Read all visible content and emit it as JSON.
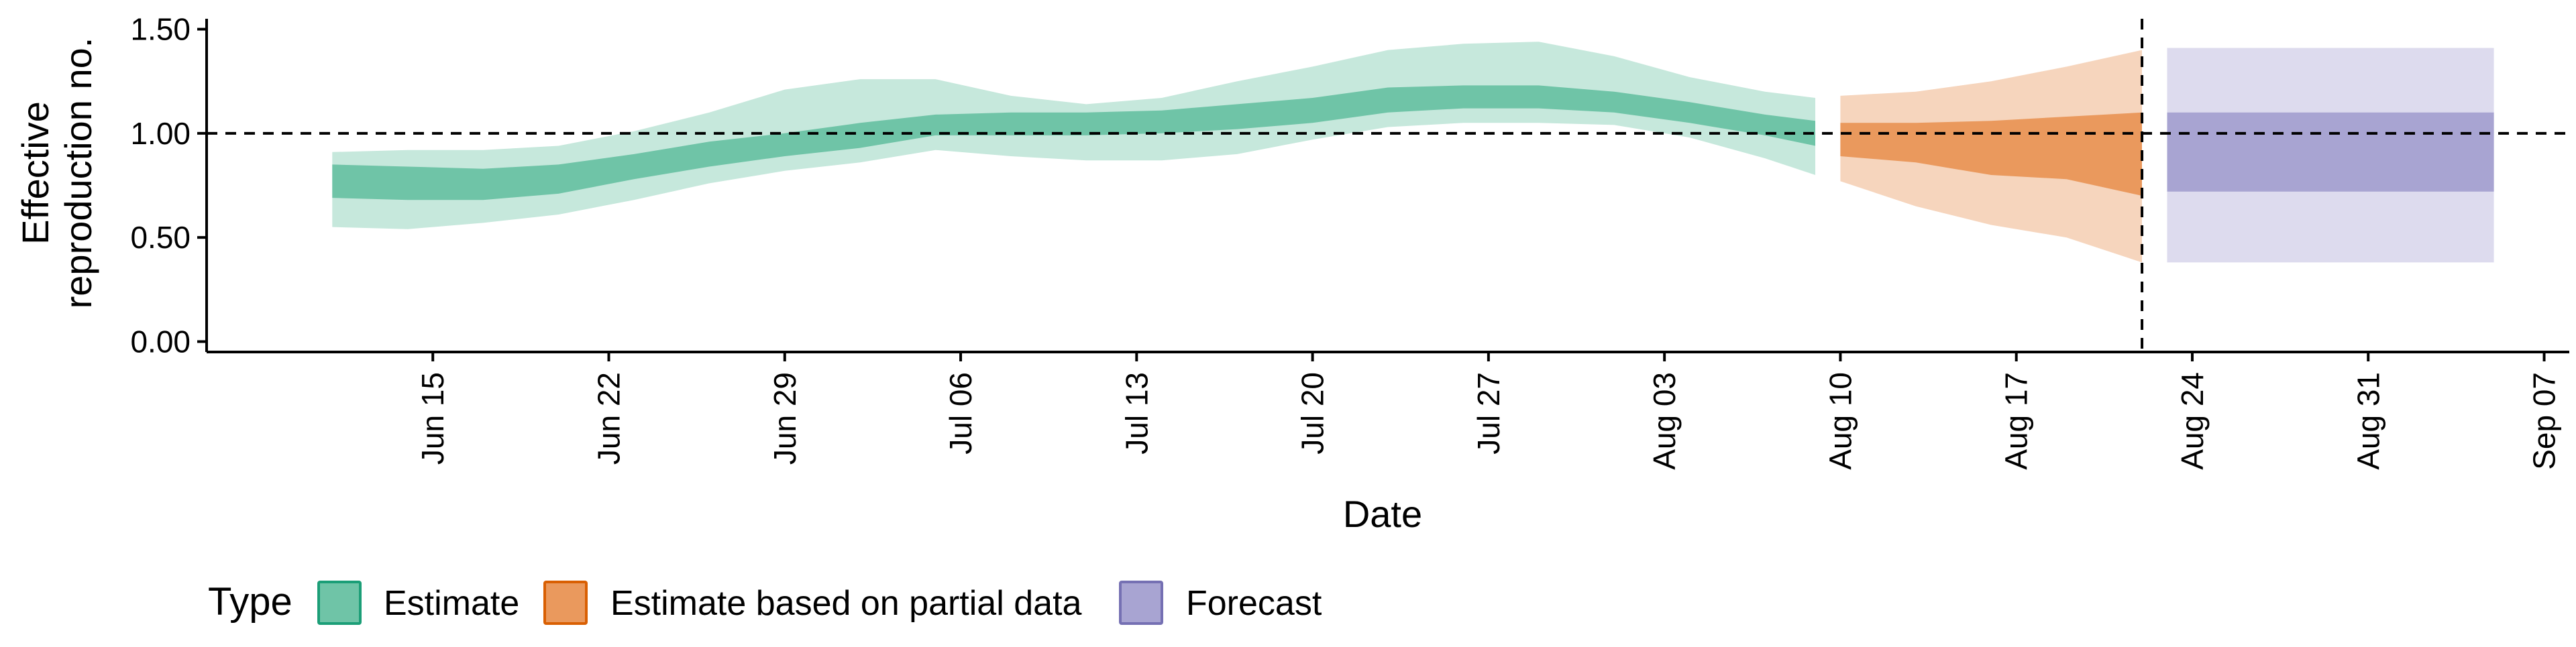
{
  "chart_data": {
    "type": "area",
    "title": "",
    "xlabel": "Date",
    "ylabel_lines": [
      "Effective",
      "reproduction no."
    ],
    "ylim": [
      -0.05,
      1.55
    ],
    "y_ticks": [
      0.0,
      0.5,
      1.0,
      1.5
    ],
    "y_tick_labels": [
      "0.00",
      "0.50",
      "1.00",
      "1.50"
    ],
    "x_range": [
      "2020-06-06",
      "2020-09-08"
    ],
    "x_ticks": [
      "2020-06-15",
      "2020-06-22",
      "2020-06-29",
      "2020-07-06",
      "2020-07-13",
      "2020-07-20",
      "2020-07-27",
      "2020-08-03",
      "2020-08-10",
      "2020-08-17",
      "2020-08-24",
      "2020-08-31",
      "2020-09-07"
    ],
    "x_tick_labels": [
      "Jun 15",
      "Jun 22",
      "Jun 29",
      "Jul 06",
      "Jul 13",
      "Jul 20",
      "Jul 27",
      "Aug 03",
      "Aug 10",
      "Aug 17",
      "Aug 24",
      "Aug 31",
      "Sep 07"
    ],
    "hline": 1.0,
    "vline": "2020-08-22",
    "grid": false,
    "legend": {
      "position": "bottom",
      "title": "Type",
      "items": [
        {
          "label": "Estimate",
          "fill": "#6fc4a7",
          "border": "#1b9e77"
        },
        {
          "label": "Estimate based on partial data",
          "fill": "#ea995d",
          "border": "#d95f02"
        },
        {
          "label": "Forecast",
          "fill": "#a8a4d2",
          "border": "#7570b3"
        }
      ]
    },
    "series": [
      {
        "name": "Estimate",
        "inner_color": "#6fc4a7",
        "outer_color": "#c6e8dc",
        "points": [
          {
            "x": "2020-06-11",
            "o_lo": 0.55,
            "i_lo": 0.69,
            "i_hi": 0.85,
            "o_hi": 0.91
          },
          {
            "x": "2020-06-14",
            "o_lo": 0.54,
            "i_lo": 0.68,
            "i_hi": 0.84,
            "o_hi": 0.92
          },
          {
            "x": "2020-06-17",
            "o_lo": 0.57,
            "i_lo": 0.68,
            "i_hi": 0.83,
            "o_hi": 0.92
          },
          {
            "x": "2020-06-20",
            "o_lo": 0.61,
            "i_lo": 0.71,
            "i_hi": 0.85,
            "o_hi": 0.94
          },
          {
            "x": "2020-06-23",
            "o_lo": 0.68,
            "i_lo": 0.78,
            "i_hi": 0.9,
            "o_hi": 1.01
          },
          {
            "x": "2020-06-26",
            "o_lo": 0.76,
            "i_lo": 0.84,
            "i_hi": 0.96,
            "o_hi": 1.1
          },
          {
            "x": "2020-06-29",
            "o_lo": 0.82,
            "i_lo": 0.89,
            "i_hi": 1.0,
            "o_hi": 1.21
          },
          {
            "x": "2020-07-02",
            "o_lo": 0.86,
            "i_lo": 0.93,
            "i_hi": 1.05,
            "o_hi": 1.26
          },
          {
            "x": "2020-07-05",
            "o_lo": 0.92,
            "i_lo": 0.99,
            "i_hi": 1.09,
            "o_hi": 1.26
          },
          {
            "x": "2020-07-08",
            "o_lo": 0.89,
            "i_lo": 0.99,
            "i_hi": 1.1,
            "o_hi": 1.18
          },
          {
            "x": "2020-07-11",
            "o_lo": 0.87,
            "i_lo": 0.99,
            "i_hi": 1.1,
            "o_hi": 1.14
          },
          {
            "x": "2020-07-14",
            "o_lo": 0.87,
            "i_lo": 1.0,
            "i_hi": 1.11,
            "o_hi": 1.17
          },
          {
            "x": "2020-07-17",
            "o_lo": 0.9,
            "i_lo": 1.02,
            "i_hi": 1.14,
            "o_hi": 1.25
          },
          {
            "x": "2020-07-20",
            "o_lo": 0.97,
            "i_lo": 1.05,
            "i_hi": 1.17,
            "o_hi": 1.32
          },
          {
            "x": "2020-07-23",
            "o_lo": 1.03,
            "i_lo": 1.1,
            "i_hi": 1.22,
            "o_hi": 1.4
          },
          {
            "x": "2020-07-26",
            "o_lo": 1.05,
            "i_lo": 1.12,
            "i_hi": 1.23,
            "o_hi": 1.43
          },
          {
            "x": "2020-07-29",
            "o_lo": 1.05,
            "i_lo": 1.12,
            "i_hi": 1.23,
            "o_hi": 1.44
          },
          {
            "x": "2020-08-01",
            "o_lo": 1.04,
            "i_lo": 1.1,
            "i_hi": 1.2,
            "o_hi": 1.37
          },
          {
            "x": "2020-08-04",
            "o_lo": 0.98,
            "i_lo": 1.05,
            "i_hi": 1.15,
            "o_hi": 1.27
          },
          {
            "x": "2020-08-07",
            "o_lo": 0.88,
            "i_lo": 0.99,
            "i_hi": 1.09,
            "o_hi": 1.2
          },
          {
            "x": "2020-08-09",
            "o_lo": 0.8,
            "i_lo": 0.94,
            "i_hi": 1.06,
            "o_hi": 1.17
          }
        ]
      },
      {
        "name": "Estimate based on partial data",
        "inner_color": "#ea995d",
        "outer_color": "#f6d5bd",
        "points": [
          {
            "x": "2020-08-10",
            "o_lo": 0.77,
            "i_lo": 0.89,
            "i_hi": 1.05,
            "o_hi": 1.18
          },
          {
            "x": "2020-08-13",
            "o_lo": 0.65,
            "i_lo": 0.86,
            "i_hi": 1.05,
            "o_hi": 1.2
          },
          {
            "x": "2020-08-16",
            "o_lo": 0.56,
            "i_lo": 0.8,
            "i_hi": 1.06,
            "o_hi": 1.25
          },
          {
            "x": "2020-08-19",
            "o_lo": 0.5,
            "i_lo": 0.78,
            "i_hi": 1.08,
            "o_hi": 1.32
          },
          {
            "x": "2020-08-22",
            "o_lo": 0.38,
            "i_lo": 0.7,
            "i_hi": 1.1,
            "o_hi": 1.4
          }
        ]
      },
      {
        "name": "Forecast",
        "inner_color": "#a8a4d2",
        "outer_color": "#dddbee",
        "points": [
          {
            "x": "2020-08-23",
            "o_lo": 0.38,
            "i_lo": 0.72,
            "i_hi": 1.1,
            "o_hi": 1.41
          },
          {
            "x": "2020-09-05",
            "o_lo": 0.38,
            "i_lo": 0.72,
            "i_hi": 1.1,
            "o_hi": 1.41
          }
        ]
      }
    ]
  }
}
